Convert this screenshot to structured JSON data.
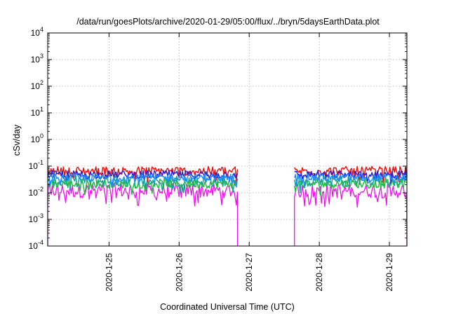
{
  "chart_data": {
    "type": "line",
    "title": "/data/run/goesPlots/archive/2020-01-29/05:00/flux/../bryn/5daysEarthData.plot",
    "xlabel": "Coordinated Universal Time (UTC)",
    "ylabel": "cSv/day",
    "y_scale": "log",
    "ylim": [
      0.0001,
      10000
    ],
    "y_ticks": [
      {
        "value": 0.0001,
        "base": "10",
        "exp": "-4"
      },
      {
        "value": 0.001,
        "base": "10",
        "exp": "-3"
      },
      {
        "value": 0.01,
        "base": "10",
        "exp": "-2"
      },
      {
        "value": 0.1,
        "base": "10",
        "exp": "-1"
      },
      {
        "value": 1,
        "base": "10",
        "exp": "0"
      },
      {
        "value": 10,
        "base": "10",
        "exp": "1"
      },
      {
        "value": 100,
        "base": "10",
        "exp": "2"
      },
      {
        "value": 1000,
        "base": "10",
        "exp": "3"
      },
      {
        "value": 10000,
        "base": "10",
        "exp": "4"
      }
    ],
    "xlim": [
      "2020-01-24T03:00",
      "2020-01-29T06:00"
    ],
    "x_ticks": [
      "2020-1-25",
      "2020-1-26",
      "2020-1-27",
      "2020-1-28",
      "2020-1-29"
    ],
    "x_tick_dates": [
      "2020-01-25T00:00",
      "2020-01-26T00:00",
      "2020-01-27T00:00",
      "2020-01-28T00:00",
      "2020-01-29T00:00"
    ],
    "grid": true,
    "data_gap": [
      "2020-01-26T20:00",
      "2020-01-27T15:30"
    ],
    "series": [
      {
        "color": "#ee1111",
        "segments": [
          {
            "start": "2020-01-24T03:00",
            "end": "2020-01-26T20:00",
            "level": 0.065,
            "spread": 0.35
          },
          {
            "start": "2020-01-27T15:30",
            "end": "2020-01-29T06:00",
            "level": 0.065,
            "spread": 0.35
          }
        ]
      },
      {
        "color": "#2222dd",
        "segments": [
          {
            "start": "2020-01-24T03:00",
            "end": "2020-01-26T20:00",
            "level": 0.048,
            "spread": 0.3
          },
          {
            "start": "2020-01-27T15:30",
            "end": "2020-01-29T06:00",
            "level": 0.048,
            "spread": 0.3
          }
        ]
      },
      {
        "color": "#11a0a0",
        "segments": [
          {
            "start": "2020-01-24T03:00",
            "end": "2020-01-26T20:00",
            "level": 0.028,
            "spread": 0.45
          },
          {
            "start": "2020-01-27T15:30",
            "end": "2020-01-29T06:00",
            "level": 0.028,
            "spread": 0.45
          }
        ]
      },
      {
        "color": "#22bb44",
        "segments": [
          {
            "start": "2020-01-24T03:00",
            "end": "2020-01-26T20:00",
            "level": 0.022,
            "spread": 0.35
          },
          {
            "start": "2020-01-27T15:30",
            "end": "2020-01-29T06:00",
            "level": 0.022,
            "spread": 0.35
          }
        ]
      },
      {
        "color": "#1e8cff",
        "segments": [
          {
            "start": "2020-01-24T03:00",
            "end": "2020-01-26T20:00",
            "level": 0.037,
            "spread": 0.28
          },
          {
            "start": "2020-01-27T15:30",
            "end": "2020-01-29T06:00",
            "level": 0.037,
            "spread": 0.28
          }
        ]
      },
      {
        "color": "#ee11ee",
        "segments": [
          {
            "start": "2020-01-24T03:00",
            "end": "2020-01-26T20:00",
            "level": 0.012,
            "spread": 0.55
          },
          {
            "start": "2020-01-27T15:30",
            "end": "2020-01-29T06:00",
            "level": 0.012,
            "spread": 0.55
          }
        ]
      }
    ]
  }
}
